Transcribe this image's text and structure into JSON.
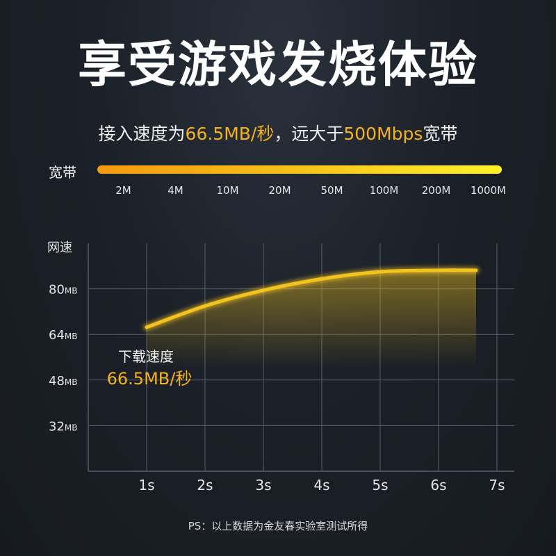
{
  "headline": "享受游戏发烧体验",
  "subline": {
    "part1": "接入速度为",
    "speed": "66.5MB/秒",
    "part2": "，远大于",
    "bandwidth": "500Mbps",
    "part3": "宽带"
  },
  "bandwidth_bar": {
    "label": "宽带",
    "ticks": [
      "2M",
      "4M",
      "10M",
      "20M",
      "50M",
      "100M",
      "200M",
      "1000M"
    ]
  },
  "colors": {
    "accent": "#f6b21b",
    "curve": "#f2c21e",
    "grid": "#5a6068"
  },
  "chart_data": {
    "type": "line",
    "ylabel": "网速",
    "xlabel": "",
    "x_ticks": [
      "1s",
      "2s",
      "3s",
      "4s",
      "5s",
      "6s",
      "7s"
    ],
    "y_ticks": [
      {
        "value": 32,
        "label": "32",
        "unit": "MB"
      },
      {
        "value": 48,
        "label": "48",
        "unit": "MB"
      },
      {
        "value": 64,
        "label": "64",
        "unit": "MB"
      },
      {
        "value": 80,
        "label": "80",
        "unit": "MB"
      }
    ],
    "ylim": [
      16,
      96
    ],
    "xlim": [
      0,
      7
    ],
    "grid": true,
    "series": [
      {
        "x": [
          1,
          2,
          3,
          4,
          5,
          6,
          7
        ],
        "values": [
          66.5,
          74,
          79.5,
          83.5,
          86,
          86.5,
          86.5
        ]
      }
    ],
    "annotation": {
      "label": "下载速度",
      "value": "66.5MB/秒"
    }
  },
  "footnote": "PS：以上数据为金友春实验室测试所得"
}
